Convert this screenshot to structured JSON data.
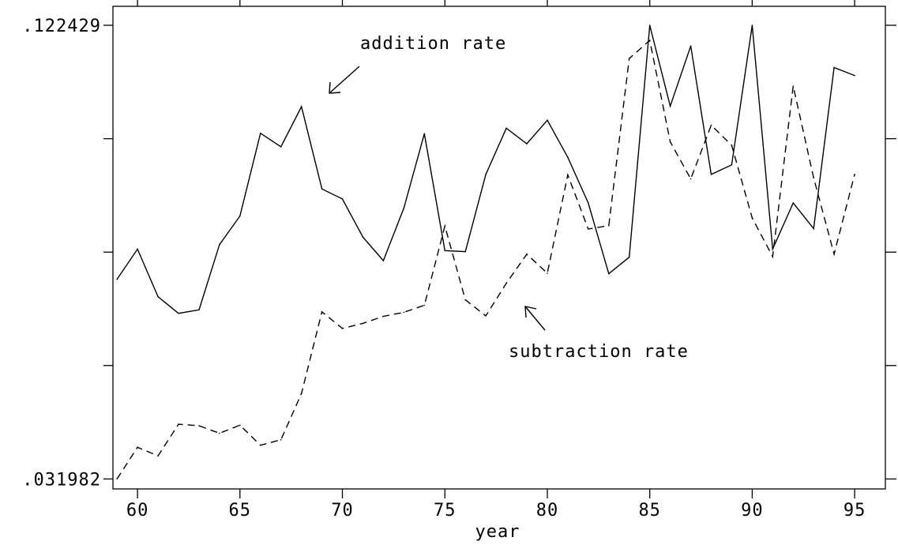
{
  "chart_data": {
    "type": "line",
    "title": "",
    "xlabel": "year",
    "ylabel": "",
    "xlim": [
      58.8,
      96.5
    ],
    "ylim": [
      0.03,
      0.1262
    ],
    "x_ticks": [
      60,
      65,
      70,
      75,
      80,
      85,
      90,
      95
    ],
    "x_tick_labels": [
      "60",
      "65",
      "70",
      "75",
      "80",
      "85",
      "90",
      "95"
    ],
    "y_ticks": [
      0.031982,
      0.054594,
      0.077206,
      0.099817,
      0.122429
    ],
    "y_tick_labels": [
      ".031982",
      "",
      "",
      "",
      ".122429"
    ],
    "grid": false,
    "x": [
      59,
      60,
      61,
      62,
      63,
      64,
      65,
      66,
      67,
      68,
      69,
      70,
      71,
      72,
      73,
      74,
      75,
      76,
      77,
      78,
      79,
      80,
      81,
      82,
      83,
      84,
      85,
      86,
      87,
      88,
      89,
      90,
      91,
      92,
      93,
      94,
      95
    ],
    "series": [
      {
        "name": "addition rate",
        "style": "solid",
        "values": [
          0.0718,
          0.0778,
          0.0683,
          0.065,
          0.0657,
          0.0787,
          0.0844,
          0.1009,
          0.0982,
          0.1062,
          0.0898,
          0.0878,
          0.0802,
          0.0755,
          0.086,
          0.1008,
          0.0775,
          0.0773,
          0.0927,
          0.1019,
          0.0988,
          0.1035,
          0.0961,
          0.087,
          0.0729,
          0.0762,
          0.1224,
          0.1063,
          0.1183,
          0.0927,
          0.0946,
          0.1224,
          0.0778,
          0.087,
          0.0819,
          0.114,
          0.1124
        ]
      },
      {
        "name": "subtraction rate",
        "style": "dashed",
        "values": [
          0.032,
          0.0383,
          0.0366,
          0.0429,
          0.0426,
          0.0411,
          0.0427,
          0.0387,
          0.0398,
          0.049,
          0.0653,
          0.062,
          0.063,
          0.0644,
          0.0652,
          0.0666,
          0.0824,
          0.0677,
          0.0645,
          0.071,
          0.0768,
          0.073,
          0.0926,
          0.0818,
          0.0825,
          0.1158,
          0.1194,
          0.0992,
          0.0918,
          0.1025,
          0.0985,
          0.084,
          0.0763,
          0.1103,
          0.092,
          0.0768,
          0.0927
        ]
      }
    ],
    "annotations": [
      {
        "text": "addition rate",
        "series": "addition rate"
      },
      {
        "text": "subtraction rate",
        "series": "subtraction rate"
      }
    ]
  }
}
